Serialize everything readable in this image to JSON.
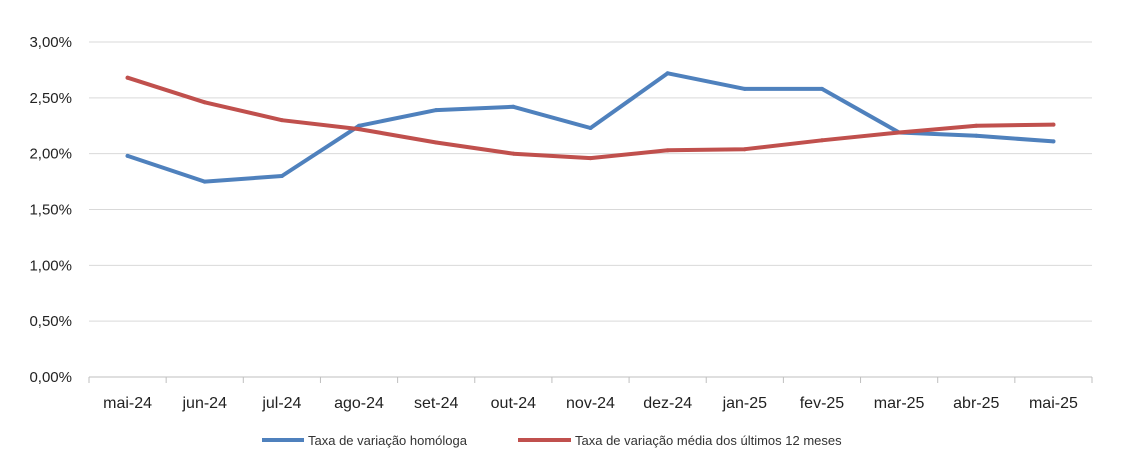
{
  "chart_data": {
    "type": "line",
    "title": "",
    "xlabel": "",
    "ylabel": "",
    "categories": [
      "mai-24",
      "jun-24",
      "jul-24",
      "ago-24",
      "set-24",
      "out-24",
      "nov-24",
      "dez-24",
      "jan-25",
      "fev-25",
      "mar-25",
      "abr-25",
      "mai-25"
    ],
    "ylim": [
      0,
      3.0
    ],
    "yticks": [
      0,
      0.5,
      1.0,
      1.5,
      2.0,
      2.5,
      3.0
    ],
    "ytick_labels": [
      "0,00%",
      "0,50%",
      "1,00%",
      "1,50%",
      "2,00%",
      "2,50%",
      "3,00%"
    ],
    "grid": true,
    "legend_position": "bottom",
    "series": [
      {
        "name": "Taxa de variação homóloga",
        "color": "#4F81BD",
        "values": [
          1.98,
          1.75,
          1.8,
          2.25,
          2.39,
          2.42,
          2.23,
          2.72,
          2.58,
          2.58,
          2.19,
          2.16,
          2.11
        ]
      },
      {
        "name": "Taxa de variação média dos últimos 12 meses",
        "color": "#C0504D",
        "values": [
          2.68,
          2.46,
          2.3,
          2.22,
          2.1,
          2.0,
          1.96,
          2.03,
          2.04,
          2.12,
          2.19,
          2.25,
          2.26
        ]
      }
    ]
  }
}
